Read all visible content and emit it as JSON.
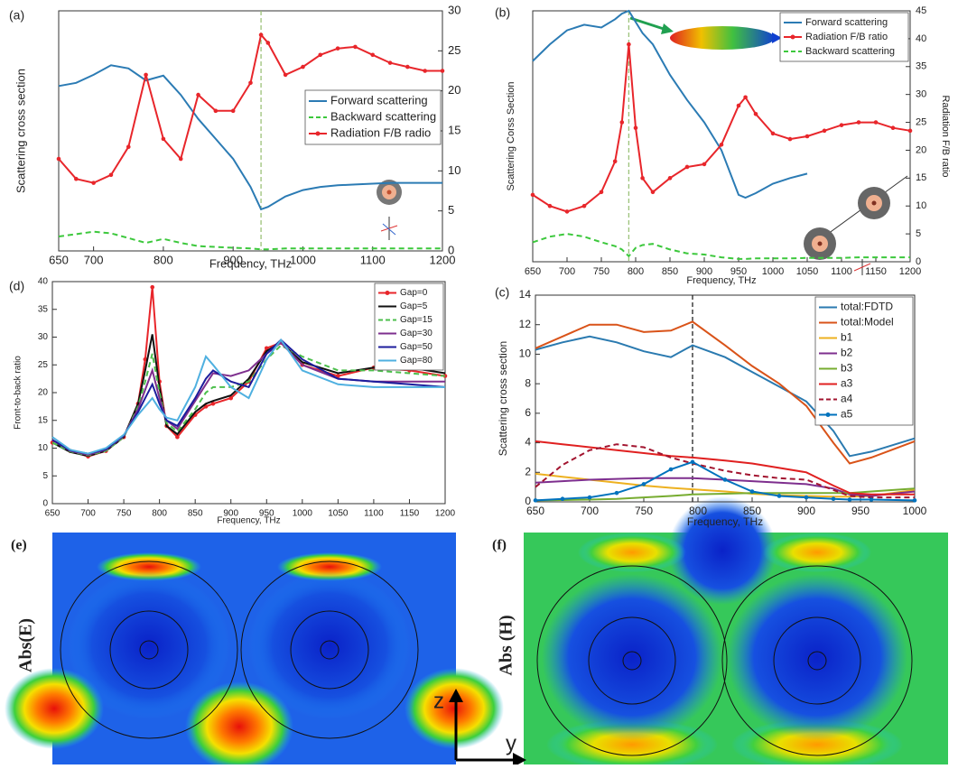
{
  "chart_data": [
    {
      "type": "line",
      "panel": "(a)",
      "xlabel": "Frequency, THz",
      "ylabel": "Scattering cross section",
      "x": [
        650,
        675,
        700,
        725,
        750,
        775,
        800,
        825,
        850,
        875,
        900,
        925,
        940,
        950,
        975,
        1000,
        1025,
        1050,
        1075,
        1100,
        1125,
        1150,
        1175,
        1200
      ],
      "xlim": [
        650,
        1200
      ],
      "xticks": [
        650,
        700,
        800,
        900,
        1000,
        1100,
        1200
      ],
      "ylim": [
        0,
        30
      ],
      "y2lim": [
        0,
        30
      ],
      "y2ticks": [
        0,
        5,
        10,
        15,
        20,
        25,
        30
      ],
      "vline": {
        "x": 940,
        "color": "#9cc27a"
      },
      "legend": "center right",
      "series": [
        {
          "name": "Forward scattering",
          "color": "#2b7bb4",
          "values": [
            20.6,
            21,
            22,
            23.2,
            22.8,
            21.3,
            21.9,
            19.5,
            16.5,
            14,
            11.5,
            8,
            5.2,
            5.5,
            6.8,
            7.6,
            8,
            8.2,
            8.3,
            8.4,
            8.5,
            8.5,
            8.5,
            8.5
          ]
        },
        {
          "name": "Backward scattering",
          "color": "#3cc83c",
          "style": "dashed",
          "values": [
            1.8,
            2.1,
            2.4,
            2.2,
            1.6,
            1,
            1.5,
            1,
            0.6,
            0.5,
            0.4,
            0.3,
            0.2,
            0.2,
            0.3,
            0.3,
            0.3,
            0.3,
            0.3,
            0.3,
            0.3,
            0.3,
            0.3,
            0.3
          ]
        },
        {
          "name": "Radiation F/B radio",
          "color": "#e8262b",
          "markers": true,
          "axis": "y2",
          "values": [
            11.5,
            9,
            8.5,
            9.5,
            13,
            22,
            14,
            11.5,
            19.5,
            17.5,
            17.5,
            21,
            27,
            26,
            22,
            23,
            24.5,
            25.3,
            25.5,
            24.5,
            23.5,
            23,
            22.5,
            22.5
          ]
        }
      ]
    },
    {
      "type": "line",
      "panel": "(b)",
      "xlabel": "Frequency, THz",
      "ylabel": "Scattering Corss Section",
      "y2label": "Radiation F/B ratio",
      "x": [
        650,
        675,
        700,
        725,
        750,
        770,
        780,
        790,
        800,
        810,
        825,
        850,
        875,
        900,
        925,
        950,
        960,
        975,
        1000,
        1025,
        1050,
        1075,
        1100,
        1125,
        1150,
        1175,
        1200
      ],
      "xlim": [
        650,
        1200
      ],
      "xticks": [
        650,
        700,
        750,
        800,
        850,
        900,
        950,
        1000,
        1050,
        1100,
        1150,
        1200
      ],
      "ylim": [
        0,
        45
      ],
      "y2lim": [
        0,
        45
      ],
      "y2ticks": [
        0,
        5,
        10,
        15,
        20,
        25,
        30,
        35,
        40,
        45
      ],
      "vline": {
        "x": 790,
        "color": "#9cc27a"
      },
      "legend": "upper right",
      "series": [
        {
          "name": "Forward scattering",
          "color": "#2b7bb4",
          "values": [
            36,
            39,
            41.5,
            42.5,
            42,
            43.5,
            44.5,
            45,
            43,
            41,
            39,
            33.5,
            29,
            25,
            20,
            12,
            11.5,
            12.3,
            14,
            15,
            15.8,
            null,
            null,
            null,
            null,
            null,
            null
          ]
        },
        {
          "name": "Radiation F/B ratio",
          "color": "#e8262b",
          "markers": true,
          "axis": "y2",
          "values": [
            12,
            10,
            9,
            10,
            12.5,
            18,
            25,
            39,
            24,
            15,
            12.5,
            15,
            17,
            17.5,
            21,
            28,
            29.5,
            26.5,
            23,
            22,
            22.5,
            23.5,
            24.5,
            25,
            25,
            24,
            23.5
          ]
        },
        {
          "name": "Backward scattering",
          "color": "#3cc83c",
          "style": "dashed",
          "values": [
            3.5,
            4.5,
            5,
            4.5,
            3.5,
            2.8,
            2.2,
            1,
            2.5,
            3,
            3.2,
            2.2,
            1.5,
            1.3,
            0.8,
            0.5,
            0.5,
            0.6,
            0.6,
            0.6,
            0.7,
            0.7,
            0.7,
            0.8,
            0.8,
            0.8,
            0.8
          ]
        }
      ]
    },
    {
      "type": "line",
      "panel": "(d)",
      "xlabel": "Frequency, THz",
      "ylabel": "Front-to-back ratio",
      "x": [
        650,
        675,
        700,
        725,
        750,
        770,
        780,
        790,
        800,
        810,
        825,
        850,
        865,
        875,
        900,
        925,
        950,
        970,
        1000,
        1050,
        1100,
        1150,
        1200
      ],
      "xlim": [
        650,
        1200
      ],
      "xticks": [
        650,
        700,
        750,
        800,
        850,
        900,
        950,
        1000,
        1050,
        1100,
        1150,
        1200
      ],
      "ylim": [
        0,
        40
      ],
      "yticks": [
        0,
        5,
        10,
        15,
        20,
        25,
        30,
        35,
        40
      ],
      "legend": "upper right",
      "series": [
        {
          "name": "Gap=0",
          "color": "#e8262b",
          "markers": true,
          "values": [
            11,
            9.5,
            8.5,
            9.5,
            12,
            18,
            26,
            39,
            22,
            14,
            12,
            16,
            17.5,
            18,
            19,
            22,
            28,
            29,
            25,
            23,
            24.5,
            24,
            23
          ]
        },
        {
          "name": "Gap=5",
          "color": "#111111",
          "values": [
            11,
            9.3,
            8.6,
            9.5,
            12,
            18,
            24,
            30.5,
            21,
            14,
            12.5,
            16.5,
            18,
            18.5,
            19.5,
            22.5,
            27.5,
            29,
            25.5,
            23.5,
            24.5,
            24.5,
            23.5
          ]
        },
        {
          "name": "Gap=15",
          "color": "#4cbf4c",
          "style": "dashed",
          "values": [
            11,
            9.4,
            8.7,
            9.5,
            12,
            17.5,
            22,
            27,
            20,
            14.5,
            13,
            17,
            20,
            21,
            21,
            22,
            26,
            28.5,
            26.5,
            24,
            24,
            23.5,
            23
          ]
        },
        {
          "name": "Gap=30",
          "color": "#7e2f8e",
          "values": [
            11.5,
            9.5,
            8.8,
            9.7,
            12.2,
            17,
            20.5,
            24,
            19,
            15,
            13.5,
            18.5,
            21.5,
            23.5,
            23,
            24,
            27,
            29,
            25,
            22.5,
            22,
            22,
            22
          ]
        },
        {
          "name": "Gap=50",
          "color": "#1c1c9c",
          "values": [
            11.5,
            9.6,
            9,
            9.8,
            12.3,
            16.5,
            19,
            21.5,
            18,
            15,
            14,
            19,
            22.5,
            24,
            22,
            21,
            27,
            29.5,
            26,
            22.5,
            22,
            21.5,
            21
          ]
        },
        {
          "name": "Gap=80",
          "color": "#4fb0e0",
          "values": [
            12,
            9.7,
            9,
            10,
            12.4,
            16,
            17.5,
            19,
            17,
            15.5,
            15,
            21,
            26.5,
            25,
            21,
            19,
            26,
            29.5,
            24,
            21.5,
            21,
            21,
            21
          ]
        }
      ]
    },
    {
      "type": "line",
      "panel": "(c)",
      "xlabel": "Frequency, THz",
      "ylabel": "Scattering cross section",
      "x": [
        650,
        675,
        700,
        725,
        750,
        775,
        795,
        825,
        850,
        875,
        900,
        925,
        940,
        960,
        1000
      ],
      "xlim": [
        650,
        1000
      ],
      "xticks": [
        650,
        700,
        750,
        800,
        850,
        900,
        950,
        1000
      ],
      "ylim": [
        0,
        14
      ],
      "yticks": [
        0,
        2,
        4,
        6,
        8,
        10,
        12,
        14
      ],
      "vline": {
        "x": 795,
        "color": "#222222"
      },
      "legend": "upper right",
      "series": [
        {
          "name": "total:FDTD",
          "color": "#2a7ab0",
          "values": [
            10.3,
            10.8,
            11.2,
            10.8,
            10.2,
            9.8,
            10.6,
            9.8,
            8.8,
            7.8,
            6.8,
            4.8,
            3.1,
            3.4,
            4.3
          ]
        },
        {
          "name": "total:Model",
          "color": "#d95319",
          "values": [
            10.4,
            11.2,
            12,
            12,
            11.5,
            11.6,
            12.2,
            10.6,
            9.2,
            8,
            6.5,
            4,
            2.6,
            3,
            4.1
          ]
        },
        {
          "name": "b1",
          "color": "#edb120",
          "values": [
            1.9,
            1.7,
            1.5,
            1.3,
            1.1,
            0.95,
            0.85,
            0.7,
            0.55,
            0.45,
            0.4,
            0.35,
            0.35,
            0.4,
            0.8
          ]
        },
        {
          "name": "b2",
          "color": "#7e2f8e",
          "values": [
            1.3,
            1.4,
            1.5,
            1.55,
            1.6,
            1.6,
            1.6,
            1.5,
            1.4,
            1.3,
            1.2,
            0.9,
            0.5,
            0.4,
            0.7
          ]
        },
        {
          "name": "b3",
          "color": "#77ac30",
          "values": [
            0.1,
            0.12,
            0.15,
            0.2,
            0.3,
            0.4,
            0.5,
            0.55,
            0.6,
            0.6,
            0.6,
            0.6,
            0.6,
            0.7,
            0.9
          ]
        },
        {
          "name": "a3",
          "color": "#e02020",
          "values": [
            4.1,
            3.9,
            3.7,
            3.5,
            3.3,
            3.1,
            3,
            2.8,
            2.6,
            2.3,
            2,
            1.1,
            0.6,
            0.5,
            0.5
          ]
        },
        {
          "name": "a4",
          "color": "#a2142f",
          "style": "dashed",
          "values": [
            1,
            2.5,
            3.5,
            3.9,
            3.7,
            3,
            2.6,
            2.1,
            1.8,
            1.6,
            1.5,
            0.8,
            0.4,
            0.3,
            0.3
          ]
        },
        {
          "name": "a5",
          "color": "#0072bd",
          "markers": true,
          "values": [
            0.1,
            0.2,
            0.3,
            0.6,
            1.2,
            2.2,
            2.7,
            1.5,
            0.7,
            0.4,
            0.3,
            0.2,
            0.15,
            0.15,
            0.1
          ]
        }
      ]
    }
  ],
  "field_maps": [
    {
      "panel": "(e)",
      "quantity": "Abs(E)"
    },
    {
      "panel": "(f)",
      "quantity": "Abs (H)"
    }
  ],
  "field_axes": {
    "vertical": "z",
    "horizontal": "y"
  }
}
